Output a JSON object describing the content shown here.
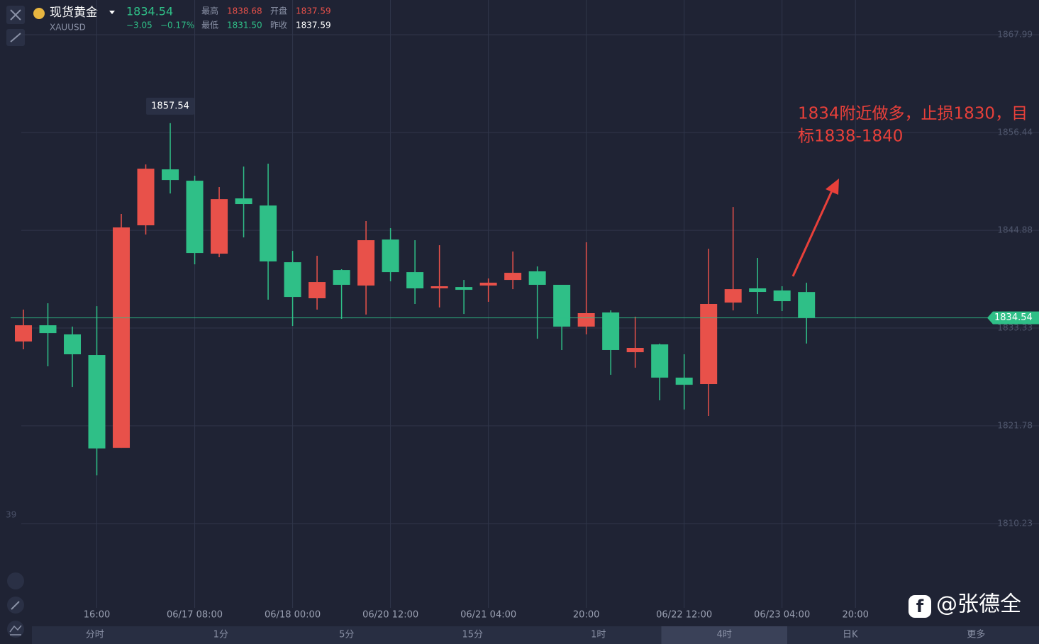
{
  "header": {
    "name": "现货黄金",
    "symbol": "XAUUSD",
    "price": "1834.54",
    "change": "−3.05",
    "change_pct": "−0.17%",
    "high_label": "最高",
    "high": "1838.68",
    "open_label": "开盘",
    "open": "1837.59",
    "low_label": "最低",
    "low": "1831.50",
    "prev_close_label": "昨收",
    "prev_close": "1837.59"
  },
  "chart_data": {
    "type": "candlestick",
    "categories": [
      null,
      null,
      null,
      "16:00",
      null,
      null,
      null,
      "06/17 08:00",
      null,
      null,
      null,
      "06/18 00:00",
      null,
      null,
      null,
      "06/20 12:00",
      null,
      null,
      null,
      "06/21 04:00",
      null,
      null,
      null,
      "20:00",
      null,
      null,
      null,
      "06/22 12:00",
      null,
      null,
      null,
      "06/23 04:00",
      null,
      null,
      "20:00",
      null,
      null,
      null,
      null,
      null
    ],
    "open": [
      1831.74,
      1833.66,
      1832.58,
      1830.15,
      1819.18,
      1845.47,
      1852.08,
      1850.74,
      1842.12,
      1848.65,
      1847.81,
      1841.11,
      1836.85,
      1840.19,
      1838.35,
      1843.79,
      1839.94,
      1838.02,
      1838.18,
      1838.35,
      1839.02,
      1840.03,
      1838.44,
      1833.5,
      1835.17,
      1830.48,
      1831.4,
      1827.47,
      1826.72,
      1836.34,
      1838.02,
      1837.77,
      1837.59,
      null,
      null,
      null,
      null,
      null,
      null,
      null
    ],
    "high": [
      1835.51,
      1836.26,
      1833.5,
      1835.92,
      1846.81,
      1852.66,
      1857.54,
      1851.33,
      1849.99,
      1852.41,
      1852.75,
      1842.45,
      1841.87,
      1840.28,
      1845.97,
      1845.13,
      1843.71,
      1843.12,
      1839.02,
      1839.19,
      1842.37,
      1840.61,
      1838.44,
      1843.46,
      1835.42,
      1834.67,
      1831.49,
      1830.23,
      1842.7,
      1847.64,
      1841.62,
      1838.27,
      1838.68,
      null,
      null,
      null,
      null,
      null,
      null,
      null
    ],
    "low": [
      1830.82,
      1828.81,
      1826.38,
      1815.92,
      1819.18,
      1844.38,
      1849.23,
      1840.86,
      1841.7,
      1844.04,
      1836.68,
      1833.58,
      1835.51,
      1834.42,
      1834.92,
      1838.85,
      1836.18,
      1835.76,
      1835.0,
      1836.43,
      1837.93,
      1832.07,
      1830.74,
      1832.58,
      1827.81,
      1828.64,
      1824.79,
      1823.7,
      1822.95,
      1835.42,
      1835.0,
      1835.34,
      1831.5,
      null,
      null,
      null,
      null,
      null,
      null,
      null
    ],
    "close": [
      1833.66,
      1832.74,
      1830.23,
      1819.1,
      1845.22,
      1852.16,
      1850.82,
      1842.2,
      1848.56,
      1847.98,
      1841.2,
      1837.01,
      1838.77,
      1838.44,
      1843.71,
      1839.94,
      1838.02,
      1838.27,
      1837.85,
      1838.69,
      1839.86,
      1838.44,
      1833.5,
      1835.09,
      1830.74,
      1830.99,
      1827.47,
      1826.63,
      1836.18,
      1837.93,
      1837.6,
      1836.51,
      1834.54,
      null,
      null,
      null,
      null,
      null,
      null,
      null
    ],
    "up_color": "#e8514a",
    "down_color": "#2fbf87",
    "ylim": [
      1800.27,
      1872.09
    ],
    "yticks": [
      1867.99,
      1856.44,
      1844.88,
      1833.33,
      1821.78,
      1810.23
    ],
    "grid": true,
    "last_price": 1834.54,
    "high_marker_index": 6,
    "annotation": [
      "1834附近做多，止损1830，目",
      "标1838-1840"
    ],
    "left_axis_fragment": "39"
  },
  "timeframes": {
    "items": [
      "分时",
      "1分",
      "5分",
      "15分",
      "1时",
      "4时",
      "日K",
      "更多"
    ],
    "selected": 5
  },
  "watermark": "@张德全"
}
